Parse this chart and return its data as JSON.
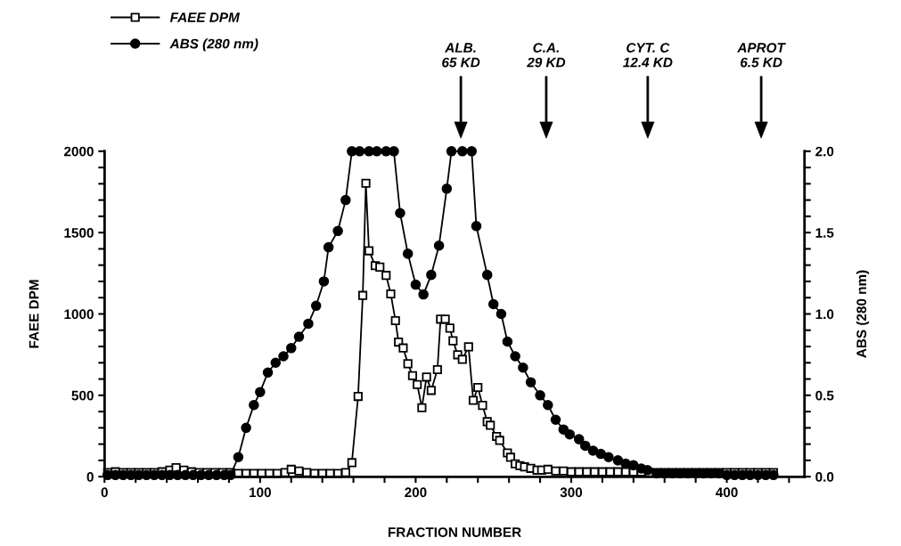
{
  "chart_data": {
    "type": "line",
    "xlabel": "FRACTION NUMBER",
    "ylabel": "FAEE DPM",
    "y2label": "ABS (280 nm)",
    "xlim": [
      0,
      450
    ],
    "xticks": [
      0,
      {
        "value": 20,
        "label": null
      },
      {
        "value": 40,
        "label": null
      },
      {
        "value": 60,
        "label": null
      },
      {
        "value": 80,
        "label": null
      },
      100,
      {
        "value": 120,
        "label": null
      },
      {
        "value": 140,
        "label": null
      },
      {
        "value": 160,
        "label": null
      },
      {
        "value": 180,
        "label": null
      },
      200,
      {
        "value": 220,
        "label": null
      },
      {
        "value": 240,
        "label": null
      },
      {
        "value": 260,
        "label": null
      },
      {
        "value": 280,
        "label": null
      },
      300,
      {
        "value": 320,
        "label": null
      },
      {
        "value": 340,
        "label": null
      },
      {
        "value": 360,
        "label": null
      },
      {
        "value": 380,
        "label": null
      },
      400,
      {
        "value": 420,
        "label": null
      },
      {
        "value": 440,
        "label": null
      }
    ],
    "ylim": [
      0,
      2000
    ],
    "yticks": [
      0,
      {
        "value": 100,
        "label": null
      },
      {
        "value": 200,
        "label": null
      },
      {
        "value": 300,
        "label": null
      },
      {
        "value": 400,
        "label": null
      },
      500,
      {
        "value": 600,
        "label": null
      },
      {
        "value": 700,
        "label": null
      },
      {
        "value": 800,
        "label": null
      },
      {
        "value": 900,
        "label": null
      },
      1000,
      {
        "value": 1100,
        "label": null
      },
      {
        "value": 1200,
        "label": null
      },
      {
        "value": 1300,
        "label": null
      },
      {
        "value": 1400,
        "label": null
      },
      1500,
      {
        "value": 1600,
        "label": null
      },
      {
        "value": 1700,
        "label": null
      },
      {
        "value": 1800,
        "label": null
      },
      {
        "value": 1900,
        "label": null
      },
      2000
    ],
    "y2lim": [
      0,
      2.0
    ],
    "y2ticks": [
      {
        "value": 0,
        "label": "0.0"
      },
      {
        "value": 0.1,
        "label": null
      },
      {
        "value": 0.2,
        "label": null
      },
      {
        "value": 0.3,
        "label": null
      },
      {
        "value": 0.4,
        "label": null
      },
      {
        "value": 0.5,
        "label": "0.5"
      },
      {
        "value": 0.6,
        "label": null
      },
      {
        "value": 0.7,
        "label": null
      },
      {
        "value": 0.8,
        "label": null
      },
      {
        "value": 0.9,
        "label": null
      },
      {
        "value": 1.0,
        "label": "1.0"
      },
      {
        "value": 1.1,
        "label": null
      },
      {
        "value": 1.2,
        "label": null
      },
      {
        "value": 1.3,
        "label": null
      },
      {
        "value": 1.4,
        "label": null
      },
      {
        "value": 1.5,
        "label": "1.5"
      },
      {
        "value": 1.6,
        "label": null
      },
      {
        "value": 1.7,
        "label": null
      },
      {
        "value": 1.8,
        "label": null
      },
      {
        "value": 1.9,
        "label": null
      },
      {
        "value": 2.0,
        "label": "2.0"
      }
    ],
    "legend": "top left",
    "grid": false,
    "line_style": "solid",
    "annotations": [
      "ALB.\n65 KD",
      "C.A.\n29 KD",
      "CYT. C\n12.4 KD",
      "APROT\n6.5 KD"
    ],
    "series": [
      {
        "name": "FAEE DPM",
        "color": "#000000",
        "marker": "square",
        "x": [
          2,
          7,
          12,
          17,
          22,
          27,
          32,
          37,
          42,
          46,
          51,
          56,
          61,
          66,
          71,
          76,
          81,
          86,
          91,
          96,
          101,
          106,
          111,
          116,
          120,
          125,
          130,
          135,
          140,
          145,
          150,
          155,
          159,
          163,
          166,
          168,
          170,
          174,
          177,
          181,
          184,
          187,
          189,
          192,
          195,
          198,
          201,
          204,
          207,
          210,
          214,
          216,
          219,
          222,
          224,
          227,
          230,
          234,
          237,
          240,
          243,
          246,
          248,
          252,
          254,
          259,
          261,
          264,
          267,
          270,
          274,
          278,
          281,
          285,
          290,
          295,
          300,
          305,
          310,
          315,
          320,
          325,
          330,
          335,
          340,
          345,
          350,
          355,
          360,
          365,
          370,
          375,
          380,
          385,
          390,
          395,
          400,
          405,
          410,
          415,
          420,
          425,
          430
        ],
        "values": [
          25,
          30,
          25,
          25,
          25,
          25,
          25,
          30,
          40,
          55,
          40,
          30,
          25,
          25,
          25,
          25,
          25,
          20,
          20,
          20,
          20,
          20,
          20,
          25,
          45,
          35,
          25,
          20,
          20,
          20,
          20,
          25,
          86,
          493,
          1114,
          1803,
          1388,
          1297,
          1288,
          1237,
          1123,
          959,
          827,
          791,
          694,
          621,
          566,
          424,
          612,
          530,
          658,
          968,
          968,
          913,
          835,
          749,
          721,
          798,
          469,
          548,
          438,
          338,
          316,
          247,
          223,
          146,
          119,
          79,
          68,
          60,
          51,
          40,
          40,
          45,
          35,
          35,
          30,
          30,
          30,
          30,
          30,
          30,
          30,
          30,
          30,
          30,
          25,
          25,
          25,
          25,
          25,
          25,
          25,
          25,
          25,
          25,
          25,
          25,
          25,
          25,
          25,
          25,
          25
        ]
      },
      {
        "name": "ABS (280 nm)",
        "color": "#000000",
        "marker": "circle",
        "axis": "y2",
        "x": [
          2,
          7,
          12,
          17,
          22,
          27,
          32,
          37,
          42,
          47,
          52,
          57,
          62,
          67,
          72,
          77,
          81,
          86,
          91,
          96,
          100,
          105,
          110,
          115,
          120,
          125,
          131,
          136,
          141,
          144,
          150,
          155,
          159,
          164,
          170,
          175,
          181,
          186,
          190,
          195,
          200,
          205,
          210,
          215,
          220,
          223,
          230,
          236,
          239,
          246,
          250,
          255,
          259,
          264,
          269,
          274,
          280,
          285,
          290,
          295,
          299,
          305,
          309,
          314,
          319,
          324,
          330,
          335,
          340,
          345,
          349,
          355,
          360,
          365,
          370,
          375,
          380,
          385,
          390,
          395,
          400,
          405,
          410,
          415,
          420,
          425,
          430
        ],
        "values": [
          0.01,
          0.01,
          0.01,
          0.01,
          0.01,
          0.01,
          0.01,
          0.01,
          0.01,
          0.01,
          0.01,
          0.01,
          0.01,
          0.01,
          0.01,
          0.01,
          0.01,
          0.12,
          0.3,
          0.44,
          0.52,
          0.64,
          0.7,
          0.74,
          0.79,
          0.86,
          0.94,
          1.05,
          1.2,
          1.41,
          1.51,
          1.7,
          2.0,
          2.0,
          2.0,
          2.0,
          2.0,
          2.0,
          1.62,
          1.37,
          1.18,
          1.12,
          1.24,
          1.42,
          1.77,
          2.0,
          2.0,
          2.0,
          1.54,
          1.24,
          1.06,
          1.0,
          0.83,
          0.74,
          0.67,
          0.58,
          0.5,
          0.44,
          0.35,
          0.29,
          0.26,
          0.23,
          0.19,
          0.16,
          0.14,
          0.12,
          0.1,
          0.08,
          0.07,
          0.05,
          0.04,
          0.02,
          0.02,
          0.02,
          0.02,
          0.02,
          0.02,
          0.02,
          0.02,
          0.02,
          0.01,
          0.01,
          0.01,
          0.01,
          0.01,
          0.01,
          0.01
        ]
      }
    ]
  }
}
